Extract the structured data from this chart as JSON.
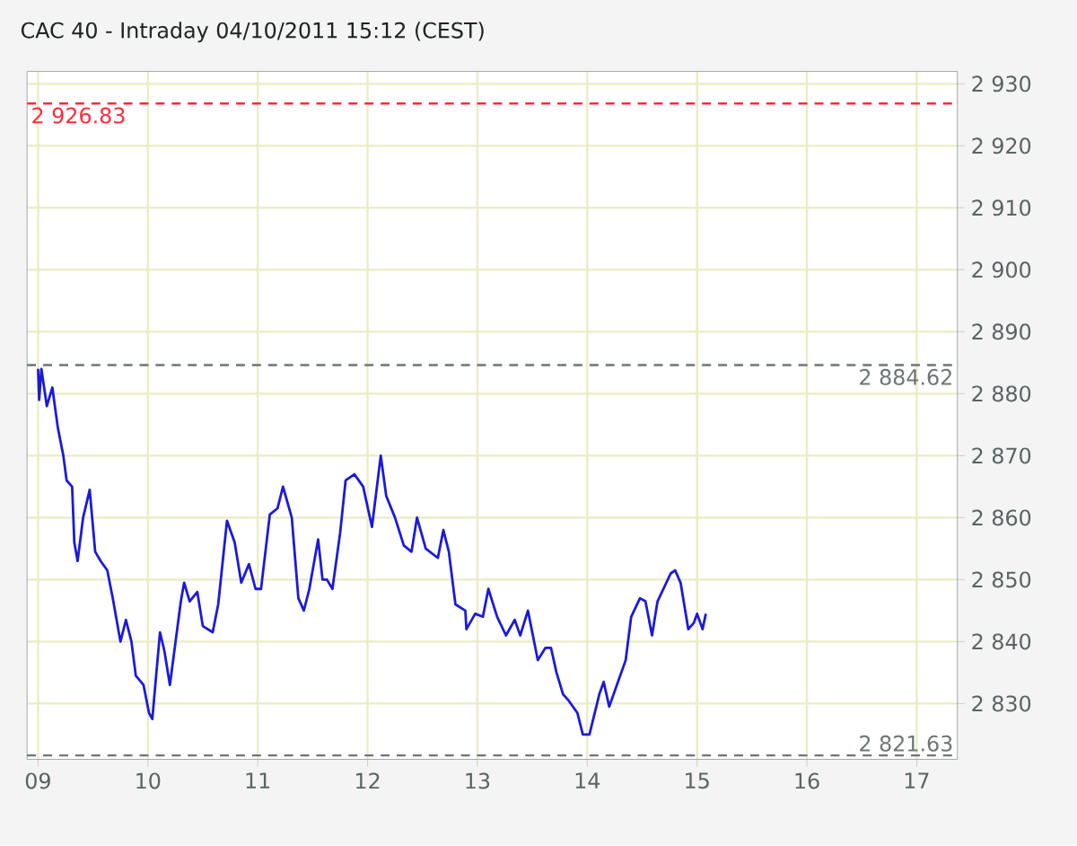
{
  "chart_data": {
    "type": "line",
    "title": "CAC 40 - Intraday   04/10/2011 15:12 (CEST)",
    "xlim": [
      8.9,
      17.37
    ],
    "ylim": [
      2821,
      2932
    ],
    "xticks": [
      {
        "value": 9,
        "label": "09"
      },
      {
        "value": 10,
        "label": "10"
      },
      {
        "value": 11,
        "label": "11"
      },
      {
        "value": 12,
        "label": "12"
      },
      {
        "value": 13,
        "label": "13"
      },
      {
        "value": 14,
        "label": "14"
      },
      {
        "value": 15,
        "label": "15"
      },
      {
        "value": 16,
        "label": "16"
      },
      {
        "value": 17,
        "label": "17"
      }
    ],
    "yticks": [
      {
        "value": 2830,
        "label": "2 830"
      },
      {
        "value": 2840,
        "label": "2 840"
      },
      {
        "value": 2850,
        "label": "2 850"
      },
      {
        "value": 2860,
        "label": "2 860"
      },
      {
        "value": 2870,
        "label": "2 870"
      },
      {
        "value": 2880,
        "label": "2 880"
      },
      {
        "value": 2890,
        "label": "2 890"
      },
      {
        "value": 2900,
        "label": "2 900"
      },
      {
        "value": 2910,
        "label": "2 910"
      },
      {
        "value": 2920,
        "label": "2 920"
      },
      {
        "value": 2930,
        "label": "2 930"
      }
    ],
    "grid": true,
    "line_style": "solid",
    "ref_lines": [
      {
        "axis": "y",
        "value": 2926.83,
        "label": "2 926.83",
        "color": "#ff2a3c",
        "line_style": "dashed"
      },
      {
        "axis": "y",
        "value": 2884.62,
        "label": "2 884.62",
        "color": "#6e7676",
        "line_style": "dashed"
      },
      {
        "axis": "y",
        "value": 2821.63,
        "label": "2 821.63",
        "color": "#6e7676",
        "line_style": "dashed"
      }
    ],
    "series": [
      {
        "color": "#1a1adc",
        "x": [
          9.0,
          9.01,
          9.03,
          9.08,
          9.13,
          9.18,
          9.23,
          9.26,
          9.31,
          9.33,
          9.36,
          9.41,
          9.47,
          9.52,
          9.57,
          9.63,
          9.68,
          9.75,
          9.8,
          9.85,
          9.89,
          9.96,
          10.01,
          10.04,
          10.11,
          10.15,
          10.2,
          10.3,
          10.33,
          10.38,
          10.45,
          10.5,
          10.59,
          10.64,
          10.72,
          10.79,
          10.85,
          10.92,
          10.98,
          11.03,
          11.11,
          11.18,
          11.23,
          11.31,
          11.37,
          11.42,
          11.47,
          11.55,
          11.59,
          11.63,
          11.68,
          11.75,
          11.8,
          11.88,
          11.96,
          12.04,
          12.12,
          12.17,
          12.25,
          12.33,
          12.4,
          12.45,
          12.53,
          12.64,
          12.69,
          12.74,
          12.8,
          12.89,
          12.9,
          12.98,
          13.05,
          13.1,
          13.18,
          13.26,
          13.34,
          13.39,
          13.46,
          13.55,
          13.62,
          13.67,
          13.72,
          13.78,
          13.83,
          13.91,
          13.96,
          14.02,
          14.11,
          14.15,
          14.2,
          14.28,
          14.35,
          14.4,
          14.48,
          14.53,
          14.59,
          14.64,
          14.76,
          14.8,
          14.85,
          14.92,
          14.97,
          15.0,
          15.05,
          15.08
        ],
        "values": [
          2884,
          2879,
          2884,
          2878,
          2881,
          2874.5,
          2870,
          2866,
          2865,
          2856,
          2853,
          2860,
          2864.5,
          2854.5,
          2853,
          2851.5,
          2847,
          2840,
          2843.5,
          2840,
          2834.5,
          2833,
          2828.5,
          2827.5,
          2841.5,
          2838.5,
          2833,
          2846.5,
          2849.5,
          2846.5,
          2848,
          2842.5,
          2841.5,
          2846,
          2859.5,
          2856,
          2849.5,
          2852.5,
          2848.5,
          2848.5,
          2860.5,
          2861.5,
          2865,
          2860,
          2847,
          2845,
          2848.5,
          2856.5,
          2850,
          2850,
          2848.5,
          2857.5,
          2866,
          2867,
          2865,
          2858.5,
          2870,
          2863.5,
          2860,
          2855.5,
          2854.5,
          2860,
          2855,
          2853.5,
          2858,
          2854.5,
          2846,
          2845,
          2842,
          2844.5,
          2844,
          2848.5,
          2844,
          2841,
          2843.5,
          2841,
          2845,
          2837,
          2839,
          2839,
          2835,
          2831.5,
          2830.5,
          2828.5,
          2825,
          2825,
          2831.5,
          2833.5,
          2829.5,
          2833.5,
          2837,
          2844,
          2847,
          2846.5,
          2841,
          2846.5,
          2851,
          2851.5,
          2849.5,
          2842,
          2843,
          2844.5,
          2842,
          2844.5
        ]
      }
    ]
  }
}
